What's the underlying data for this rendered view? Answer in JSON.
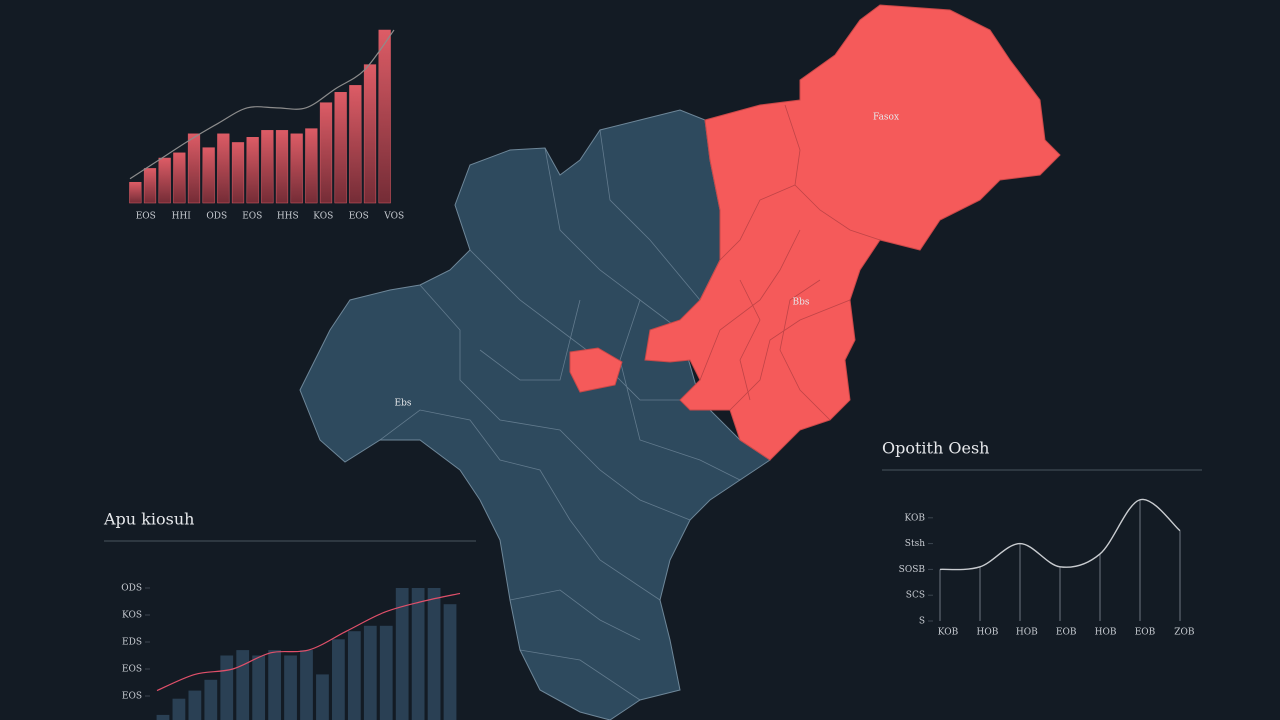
{
  "map": {
    "labels": [
      "Fasox",
      "Bbs",
      "Ebs"
    ]
  },
  "chart_data": [
    {
      "type": "bar",
      "x_labels": [
        "EOS",
        "HHI",
        "ODS",
        "EOS",
        "HHS",
        "KOS",
        "EOS",
        "VOS"
      ],
      "values": [
        12,
        20,
        26,
        29,
        40,
        32,
        40,
        35,
        38,
        42,
        42,
        40,
        43,
        58,
        64,
        68,
        80,
        100
      ],
      "line_values": [
        14,
        25,
        36,
        46,
        55,
        55,
        55,
        66,
        77,
        100
      ],
      "ylim": [
        0,
        100
      ],
      "color": "#e8606a",
      "line_color": "#8c8c8c"
    },
    {
      "type": "bar",
      "title": "Apu kiosuh",
      "values": [
        0.3,
        0.9,
        1.2,
        1.6,
        2.5,
        2.7,
        2.5,
        2.7,
        2.5,
        2.7,
        1.8,
        3.1,
        3.4,
        3.6,
        3.6,
        5.0,
        5.0,
        5.0,
        4.4
      ],
      "line_values": [
        1.2,
        1.8,
        2.0,
        2.6,
        2.7,
        3.4,
        4.1,
        4.5,
        4.8
      ],
      "ylim": [
        0,
        5
      ],
      "yticks": [
        {
          "value": 5,
          "label": "ODS"
        },
        {
          "value": 4,
          "label": "KOS"
        },
        {
          "value": 3,
          "label": "EDS"
        },
        {
          "value": 2,
          "label": "EOS"
        },
        {
          "value": 1,
          "label": "EOS"
        }
      ],
      "color": "#2b4257",
      "line_color": "#e0506a"
    },
    {
      "type": "line",
      "title": "Opotith Oesh",
      "categories": [
        "KOB",
        "HOB",
        "HOB",
        "EOB",
        "HOB",
        "EOB",
        "ZOB"
      ],
      "values": [
        2.0,
        2.1,
        3.0,
        2.1,
        2.6,
        4.7,
        3.5
      ],
      "ylim": [
        0,
        5
      ],
      "yticks": [
        {
          "value": 4,
          "label": "KOB"
        },
        {
          "value": 3,
          "label": "Stsh"
        },
        {
          "value": 2,
          "label": "SOSB"
        },
        {
          "value": 1,
          "label": "SCS"
        },
        {
          "value": 0,
          "label": "S"
        }
      ],
      "color": "#c9ccd0",
      "stem_color": "#6d7680"
    }
  ]
}
